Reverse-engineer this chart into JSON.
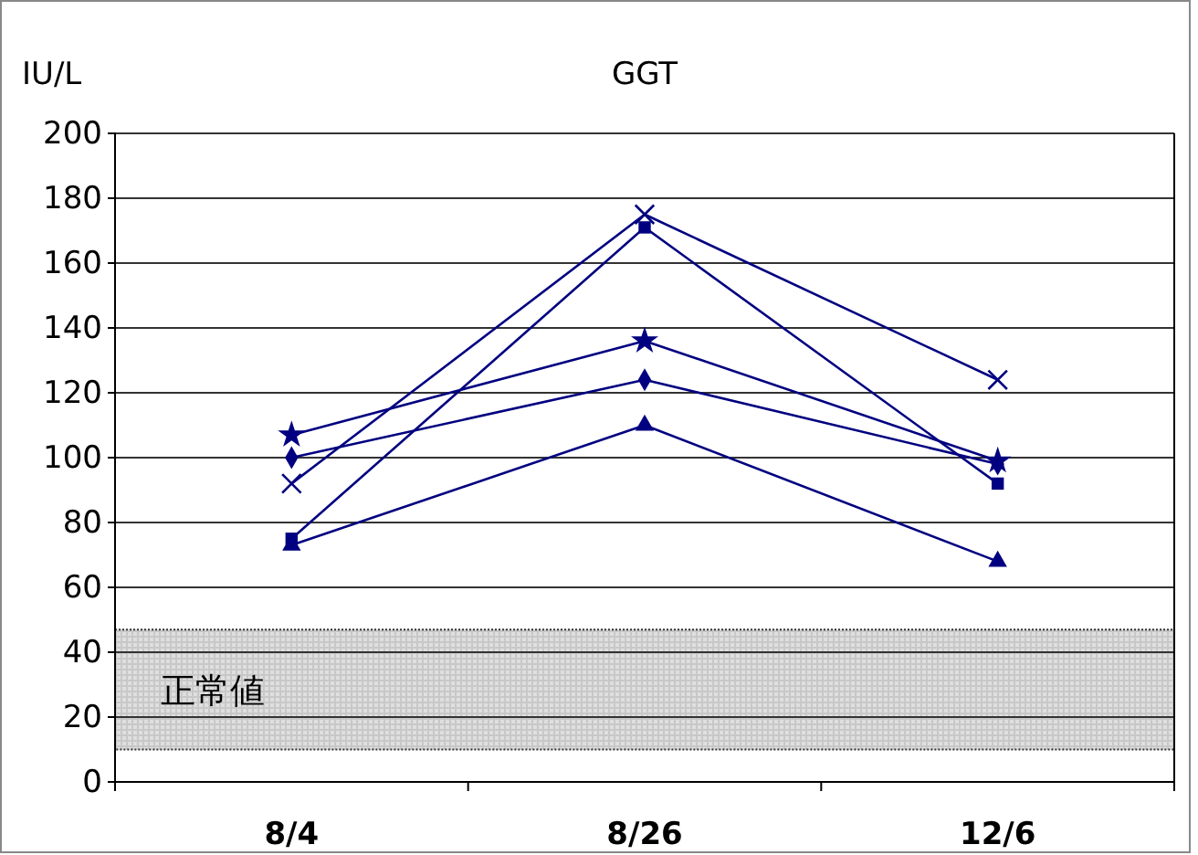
{
  "chart_data": {
    "type": "line",
    "title": "GGT",
    "ylabel": "IU/L",
    "categories": [
      "8/4",
      "8/26",
      "12/6"
    ],
    "series": [
      {
        "color": "#000080",
        "marker": "diamond",
        "values": [
          100,
          124,
          98
        ]
      },
      {
        "color": "#000080",
        "marker": "square",
        "values": [
          75,
          171,
          92
        ]
      },
      {
        "color": "#000080",
        "marker": "triangle",
        "values": [
          73,
          110,
          68
        ]
      },
      {
        "color": "#000080",
        "marker": "cross",
        "values": [
          92,
          175,
          124
        ]
      },
      {
        "color": "#000080",
        "marker": "star",
        "values": [
          107,
          136,
          99
        ]
      }
    ],
    "ylim": [
      0,
      200
    ],
    "yticks": [
      0,
      20,
      40,
      60,
      80,
      100,
      120,
      140,
      160,
      180,
      200
    ],
    "grid": "y",
    "bands": [
      {
        "axis": "y",
        "from": 10,
        "to": 47,
        "label": "正常値",
        "color": "#c8c8c8"
      }
    ]
  }
}
